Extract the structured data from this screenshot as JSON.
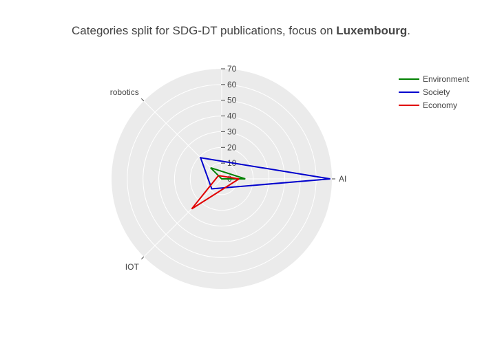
{
  "title": {
    "prefix": "Categories split for SDG-DT publications, focus on ",
    "bold": "Luxembourg",
    "suffix": "."
  },
  "chart_data": {
    "type": "radar",
    "theta_categories": [
      "AI",
      "robotics",
      "IOT"
    ],
    "radial_range": [
      0,
      70
    ],
    "radial_ticks": [
      0,
      10,
      20,
      30,
      40,
      50,
      60,
      70
    ],
    "grid": true,
    "legend_position": "top-right",
    "series": [
      {
        "name": "Environment",
        "color": "#008000",
        "values": [
          15,
          10,
          0
        ]
      },
      {
        "name": "Society",
        "color": "#0000cd",
        "values": [
          69,
          19,
          9
        ]
      },
      {
        "name": "Economy",
        "color": "#e00000",
        "values": [
          11,
          3,
          27
        ]
      }
    ]
  },
  "colors": {
    "polar_bg": "#ebebeb",
    "grid": "#ffffff",
    "text": "#444444"
  }
}
